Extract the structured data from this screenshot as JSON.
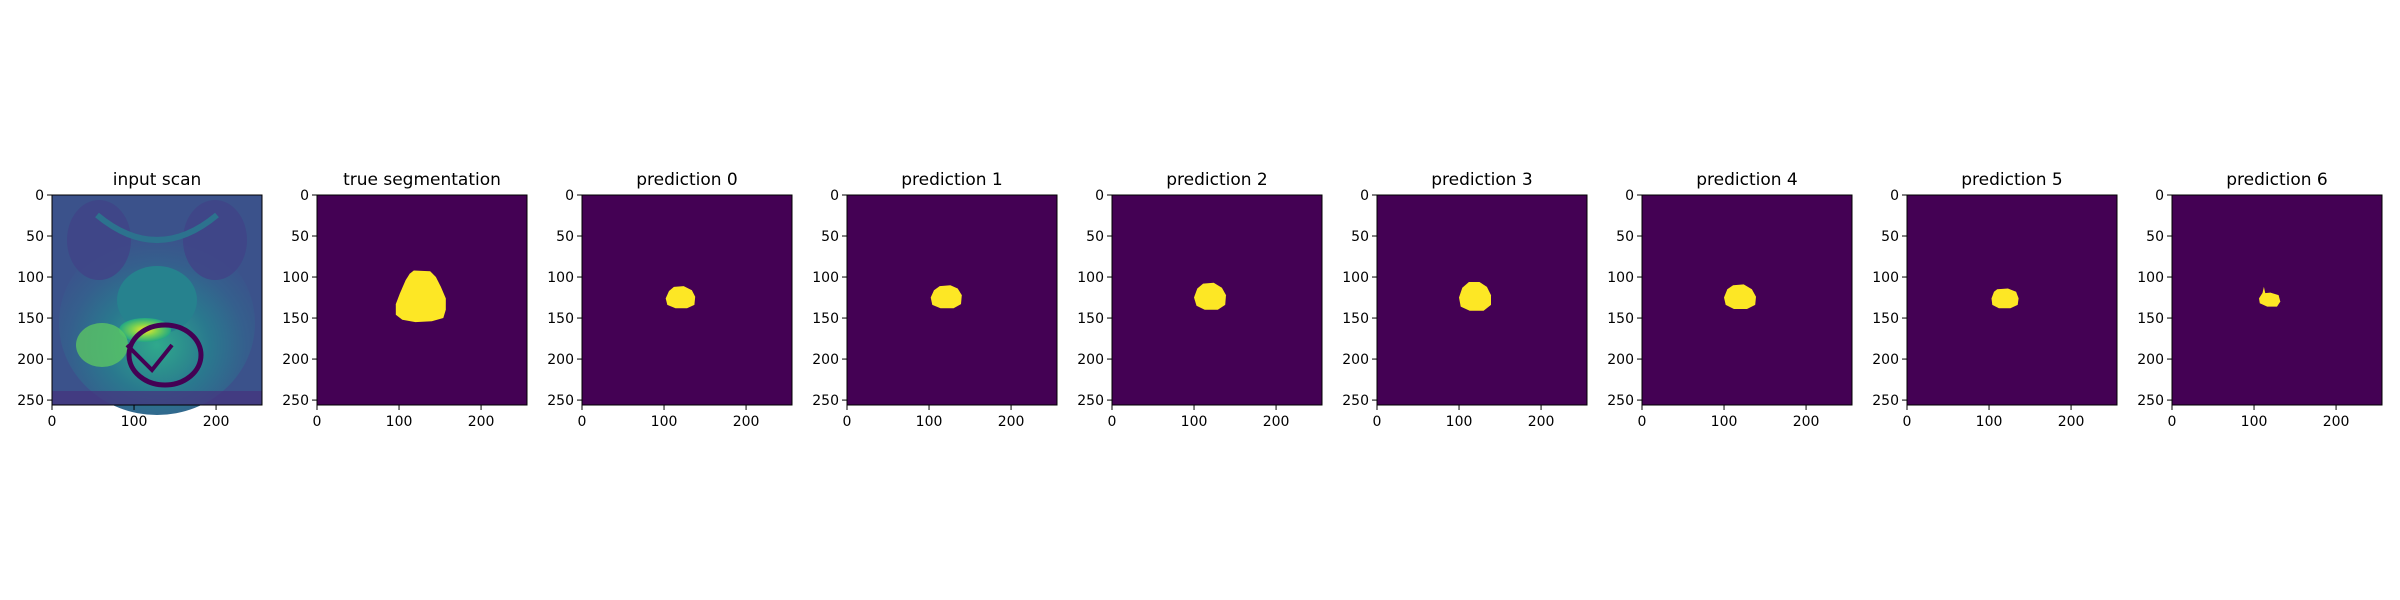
{
  "chart_data": {
    "type": "heatmap",
    "colormap": "viridis",
    "colors": {
      "background": "#440154",
      "foreground": "#fde725",
      "axis": "#000000"
    },
    "xlim": [
      0,
      256
    ],
    "ylim": [
      256,
      0
    ],
    "xticks": [
      0,
      100,
      200
    ],
    "yticks": [
      0,
      50,
      100,
      150,
      200,
      250
    ],
    "grid": false,
    "legend": "none",
    "panels": [
      {
        "title": "input scan",
        "kind": "mri"
      },
      {
        "title": "true segmentation",
        "kind": "mask",
        "polygon": [
          [
            118,
            92
          ],
          [
            138,
            93
          ],
          [
            145,
            100
          ],
          [
            151,
            112
          ],
          [
            157,
            126
          ],
          [
            157,
            140
          ],
          [
            154,
            150
          ],
          [
            140,
            154
          ],
          [
            120,
            155
          ],
          [
            104,
            152
          ],
          [
            96,
            146
          ],
          [
            96,
            133
          ],
          [
            101,
            120
          ],
          [
            108,
            104
          ],
          [
            113,
            96
          ]
        ]
      },
      {
        "title": "prediction 0",
        "kind": "mask",
        "polygon": [
          [
            112,
            112
          ],
          [
            124,
            111
          ],
          [
            134,
            116
          ],
          [
            138,
            124
          ],
          [
            137,
            134
          ],
          [
            128,
            138
          ],
          [
            114,
            138
          ],
          [
            104,
            134
          ],
          [
            102,
            126
          ],
          [
            106,
            117
          ]
        ]
      },
      {
        "title": "prediction 1",
        "kind": "mask",
        "polygon": [
          [
            113,
            111
          ],
          [
            126,
            110
          ],
          [
            135,
            114
          ],
          [
            140,
            122
          ],
          [
            139,
            133
          ],
          [
            130,
            138
          ],
          [
            114,
            138
          ],
          [
            104,
            134
          ],
          [
            102,
            125
          ],
          [
            106,
            116
          ]
        ]
      },
      {
        "title": "prediction 2",
        "kind": "mask",
        "polygon": [
          [
            111,
            108
          ],
          [
            124,
            107
          ],
          [
            134,
            113
          ],
          [
            139,
            122
          ],
          [
            138,
            134
          ],
          [
            129,
            140
          ],
          [
            113,
            140
          ],
          [
            103,
            135
          ],
          [
            100,
            125
          ],
          [
            104,
            114
          ]
        ]
      },
      {
        "title": "prediction 3",
        "kind": "mask",
        "polygon": [
          [
            112,
            106
          ],
          [
            125,
            106
          ],
          [
            134,
            112
          ],
          [
            139,
            122
          ],
          [
            139,
            134
          ],
          [
            130,
            141
          ],
          [
            113,
            141
          ],
          [
            102,
            136
          ],
          [
            100,
            125
          ],
          [
            104,
            113
          ]
        ]
      },
      {
        "title": "prediction 4",
        "kind": "mask",
        "polygon": [
          [
            111,
            110
          ],
          [
            124,
            109
          ],
          [
            134,
            115
          ],
          [
            139,
            124
          ],
          [
            138,
            134
          ],
          [
            128,
            139
          ],
          [
            112,
            139
          ],
          [
            102,
            134
          ],
          [
            100,
            125
          ],
          [
            104,
            115
          ]
        ]
      },
      {
        "title": "prediction 5",
        "kind": "mask",
        "polygon": [
          [
            110,
            115
          ],
          [
            123,
            114
          ],
          [
            133,
            118
          ],
          [
            136,
            126
          ],
          [
            135,
            134
          ],
          [
            126,
            138
          ],
          [
            112,
            138
          ],
          [
            104,
            134
          ],
          [
            103,
            126
          ],
          [
            106,
            118
          ]
        ]
      },
      {
        "title": "prediction 6",
        "kind": "mask",
        "polygon": [
          [
            110,
            120
          ],
          [
            120,
            119
          ],
          [
            130,
            122
          ],
          [
            132,
            130
          ],
          [
            128,
            136
          ],
          [
            116,
            136
          ],
          [
            107,
            132
          ],
          [
            106,
            126
          ]
        ],
        "spike": [
          [
            110,
            121
          ],
          [
            112,
            112
          ],
          [
            114,
            121
          ]
        ]
      }
    ]
  }
}
